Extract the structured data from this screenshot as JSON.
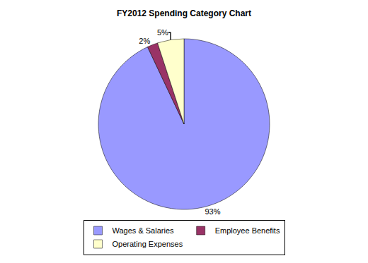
{
  "chart_data": {
    "type": "pie",
    "title": "FY2012 Spending Category Chart",
    "categories": [
      "Wages & Salaries",
      "Employee Benefits",
      "Operating Expenses"
    ],
    "values": [
      93,
      2,
      5
    ],
    "value_labels": [
      "93%",
      "2%",
      "5%"
    ],
    "colors": [
      "#9999ff",
      "#993366",
      "#ffffcc"
    ],
    "data_labels": true,
    "legend": "bottom"
  }
}
